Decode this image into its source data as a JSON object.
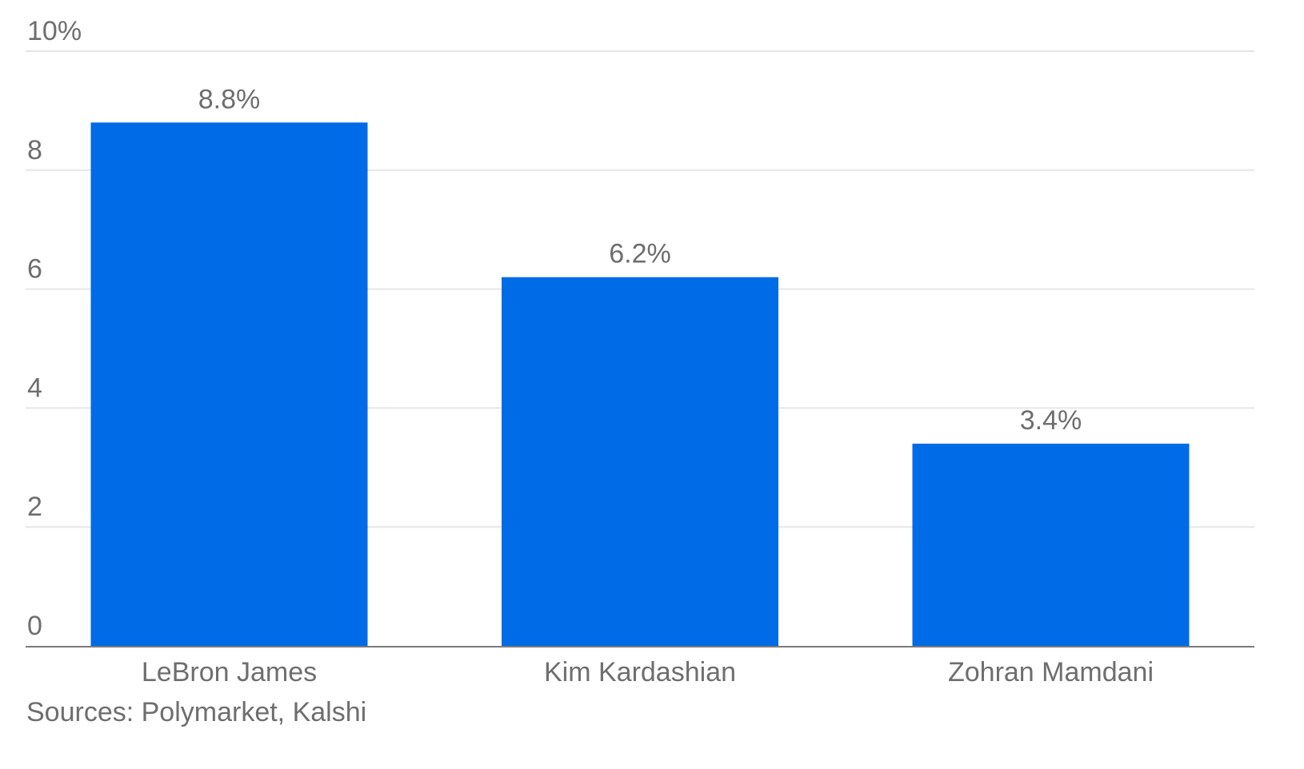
{
  "chart_data": {
    "type": "bar",
    "categories": [
      "LeBron James",
      "Kim Kardashian",
      "Zohran Mamdani"
    ],
    "values": [
      8.8,
      6.2,
      3.4
    ],
    "data_labels": [
      "8.8%",
      "6.2%",
      "3.4%"
    ],
    "ylim": [
      0,
      10
    ],
    "yticks": [
      0,
      2,
      4,
      6,
      8,
      10
    ],
    "ytick_labels": [
      "0",
      "2",
      "4",
      "6",
      "8",
      "10%"
    ],
    "title": "",
    "xlabel": "",
    "ylabel": "",
    "grid": true,
    "bar_color": "#006be6",
    "grid_color": "#e6e6e6",
    "axis_color": "#7a7a7a",
    "text_color": "#6e6e6e"
  },
  "source": "Sources: Polymarket, Kalshi"
}
